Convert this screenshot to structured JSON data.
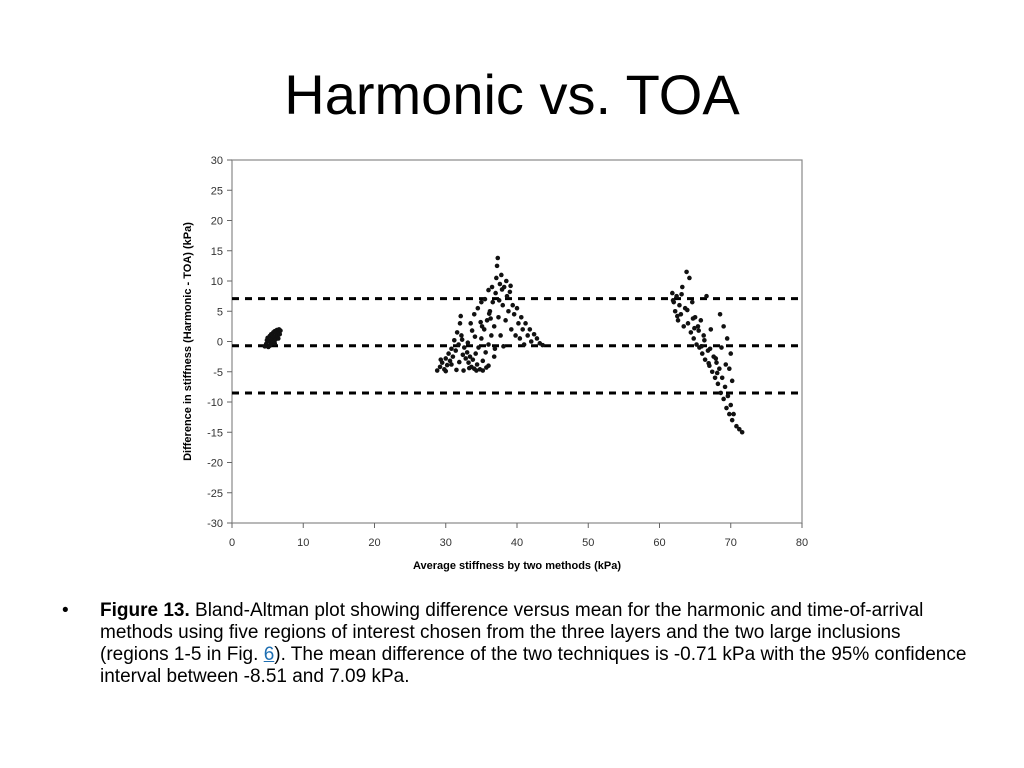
{
  "slide": {
    "title": "Harmonic vs. TOA"
  },
  "caption": {
    "bullet": "•",
    "figure_label": "Figure 13.",
    "text_before_link": " Bland-Altman plot showing difference versus mean for the harmonic and time-of-arrival methods using five regions of interest chosen from the three layers and the two large inclusions (regions 1-5 in Fig. ",
    "link_text": "6",
    "text_after_link": "). The mean difference of the two techniques is -0.71 kPa with the 95% confidence interval between -8.51 and 7.09 kPa.",
    "link_color": "#1f6fb2"
  },
  "chart_data": {
    "type": "scatter",
    "title": "",
    "xlabel": "Average stiffness by two methods (kPa)",
    "ylabel": "Difference in stiffness (Harmonic - TOA) (kPa)",
    "xlim": [
      0,
      80
    ],
    "ylim": [
      -30,
      30
    ],
    "x_ticks": [
      "0",
      "10",
      "20",
      "30",
      "40",
      "50",
      "60",
      "70",
      "80"
    ],
    "y_ticks": [
      "30",
      "25",
      "20",
      "15",
      "10",
      "5",
      "0",
      "-5",
      "-10",
      "-15",
      "-20",
      "-25",
      "-30"
    ],
    "grid": false,
    "reference_lines": [
      {
        "name": "mean",
        "y": -0.71,
        "style": "dashed"
      },
      {
        "name": "upper",
        "y": 7.09,
        "style": "dashed"
      },
      {
        "name": "lower",
        "y": -8.51,
        "style": "dashed"
      }
    ],
    "marker_color": "#111111",
    "series": [
      {
        "points": [
          [
            4.6,
            -0.8
          ],
          [
            4.8,
            -0.4
          ],
          [
            4.9,
            0.2
          ],
          [
            5.0,
            0.6
          ],
          [
            5.1,
            -0.9
          ],
          [
            5.2,
            0.1
          ],
          [
            5.3,
            0.9
          ],
          [
            5.4,
            -0.5
          ],
          [
            5.5,
            1.2
          ],
          [
            5.6,
            0.4
          ],
          [
            5.7,
            -0.2
          ],
          [
            5.8,
            1.5
          ],
          [
            5.9,
            0.8
          ],
          [
            6.0,
            1.7
          ],
          [
            6.1,
            0.3
          ],
          [
            6.2,
            1.4
          ],
          [
            6.3,
            1.9
          ],
          [
            6.4,
            0.9
          ],
          [
            6.5,
            1.6
          ],
          [
            6.6,
            2.0
          ],
          [
            6.7,
            1.2
          ],
          [
            6.8,
            1.8
          ],
          [
            5.3,
            -0.7
          ],
          [
            6.0,
            -0.3
          ],
          [
            6.5,
            0.5
          ],
          [
            28.8,
            -4.8
          ],
          [
            29.2,
            -4.2
          ],
          [
            29.5,
            -3.5
          ],
          [
            29.8,
            -4.6
          ],
          [
            30.0,
            -2.8
          ],
          [
            30.2,
            -3.9
          ],
          [
            30.4,
            -2.0
          ],
          [
            30.6,
            -3.2
          ],
          [
            30.8,
            -1.2
          ],
          [
            31.0,
            -2.5
          ],
          [
            31.2,
            0.2
          ],
          [
            31.4,
            -1.5
          ],
          [
            31.6,
            1.5
          ],
          [
            31.8,
            -0.5
          ],
          [
            32.0,
            3.0
          ],
          [
            32.1,
            4.2
          ],
          [
            32.2,
            1.0
          ],
          [
            32.4,
            -2.2
          ],
          [
            32.6,
            -1.0
          ],
          [
            32.8,
            -2.8
          ],
          [
            33.0,
            -1.8
          ],
          [
            33.2,
            -3.5
          ],
          [
            33.4,
            -2.5
          ],
          [
            33.6,
            -4.2
          ],
          [
            33.8,
            -3.0
          ],
          [
            34.0,
            -4.5
          ],
          [
            34.2,
            -2.0
          ],
          [
            34.4,
            -3.8
          ],
          [
            34.6,
            -1.0
          ],
          [
            34.8,
            -4.6
          ],
          [
            35.0,
            0.5
          ],
          [
            35.2,
            -3.2
          ],
          [
            35.4,
            2.0
          ],
          [
            35.6,
            -1.8
          ],
          [
            35.8,
            3.5
          ],
          [
            36.0,
            -0.5
          ],
          [
            36.2,
            5.0
          ],
          [
            36.4,
            1.0
          ],
          [
            36.6,
            6.5
          ],
          [
            36.8,
            2.5
          ],
          [
            37.0,
            8.0
          ],
          [
            37.1,
            10.5
          ],
          [
            37.2,
            12.5
          ],
          [
            37.3,
            13.8
          ],
          [
            37.4,
            4.0
          ],
          [
            37.6,
            9.5
          ],
          [
            37.8,
            11.0
          ],
          [
            38.0,
            6.0
          ],
          [
            38.2,
            9.0
          ],
          [
            38.4,
            3.5
          ],
          [
            38.6,
            7.5
          ],
          [
            38.8,
            5.0
          ],
          [
            39.0,
            8.2
          ],
          [
            39.2,
            2.0
          ],
          [
            39.4,
            6.0
          ],
          [
            39.6,
            4.5
          ],
          [
            39.8,
            1.0
          ],
          [
            40.0,
            5.5
          ],
          [
            40.2,
            3.0
          ],
          [
            40.4,
            0.5
          ],
          [
            40.6,
            4.0
          ],
          [
            40.8,
            2.0
          ],
          [
            41.0,
            -0.5
          ],
          [
            41.2,
            3.0
          ],
          [
            41.5,
            1.0
          ],
          [
            41.8,
            2.0
          ],
          [
            42.0,
            0.0
          ],
          [
            42.4,
            1.2
          ],
          [
            42.8,
            0.5
          ],
          [
            43.2,
            -0.3
          ],
          [
            43.6,
            -0.6
          ],
          [
            33.5,
            3.0
          ],
          [
            34.0,
            4.5
          ],
          [
            34.5,
            5.5
          ],
          [
            35.0,
            6.5
          ],
          [
            35.5,
            7.0
          ],
          [
            36.0,
            8.5
          ],
          [
            36.5,
            9.0
          ],
          [
            35.2,
            -4.8
          ],
          [
            36.0,
            -4.0
          ],
          [
            36.8,
            -2.5
          ],
          [
            30.0,
            -4.9
          ],
          [
            31.5,
            -4.7
          ],
          [
            32.5,
            -4.8
          ],
          [
            33.3,
            -4.4
          ],
          [
            34.3,
            -4.8
          ],
          [
            35.7,
            -4.3
          ],
          [
            29.3,
            -3.0
          ],
          [
            30.8,
            -3.8
          ],
          [
            31.9,
            -3.4
          ],
          [
            33.1,
            -0.2
          ],
          [
            34.1,
            0.8
          ],
          [
            35.1,
            2.5
          ],
          [
            36.3,
            3.8
          ],
          [
            37.5,
            6.8
          ],
          [
            38.5,
            10.0
          ],
          [
            39.1,
            9.2
          ],
          [
            37.7,
            1.0
          ],
          [
            38.1,
            -0.8
          ],
          [
            36.9,
            -1.2
          ],
          [
            32.3,
            0.3
          ],
          [
            33.7,
            1.8
          ],
          [
            34.9,
            3.2
          ],
          [
            36.1,
            4.6
          ],
          [
            37.9,
            8.6
          ],
          [
            61.8,
            8.0
          ],
          [
            62.0,
            6.5
          ],
          [
            62.2,
            5.0
          ],
          [
            62.4,
            7.5
          ],
          [
            62.6,
            3.5
          ],
          [
            62.8,
            6.0
          ],
          [
            63.0,
            4.5
          ],
          [
            63.2,
            9.0
          ],
          [
            63.4,
            2.5
          ],
          [
            63.6,
            5.5
          ],
          [
            63.8,
            11.5
          ],
          [
            64.0,
            3.0
          ],
          [
            64.2,
            10.5
          ],
          [
            64.4,
            1.5
          ],
          [
            64.6,
            6.5
          ],
          [
            64.8,
            0.5
          ],
          [
            65.0,
            4.0
          ],
          [
            65.2,
            -0.5
          ],
          [
            65.4,
            2.5
          ],
          [
            65.6,
            -1.0
          ],
          [
            65.8,
            3.5
          ],
          [
            66.0,
            -2.0
          ],
          [
            66.2,
            1.0
          ],
          [
            66.4,
            -3.0
          ],
          [
            66.6,
            7.5
          ],
          [
            66.8,
            -1.5
          ],
          [
            67.0,
            -4.0
          ],
          [
            67.2,
            2.0
          ],
          [
            67.4,
            -5.0
          ],
          [
            67.6,
            -2.5
          ],
          [
            67.8,
            -6.0
          ],
          [
            68.0,
            -3.5
          ],
          [
            68.2,
            -7.0
          ],
          [
            68.4,
            -4.5
          ],
          [
            68.6,
            -8.5
          ],
          [
            68.8,
            -6.0
          ],
          [
            69.0,
            -9.5
          ],
          [
            69.2,
            -7.5
          ],
          [
            69.4,
            -11.0
          ],
          [
            69.6,
            -9.0
          ],
          [
            69.8,
            -12.0
          ],
          [
            70.0,
            -10.5
          ],
          [
            70.2,
            -13.0
          ],
          [
            70.4,
            -12.0
          ],
          [
            70.8,
            -14.0
          ],
          [
            71.2,
            -14.5
          ],
          [
            71.6,
            -15.0
          ],
          [
            68.5,
            4.5
          ],
          [
            69.0,
            2.5
          ],
          [
            69.5,
            0.5
          ],
          [
            70.0,
            -2.0
          ],
          [
            69.8,
            -4.5
          ],
          [
            70.2,
            -6.5
          ],
          [
            63.1,
            7.8
          ],
          [
            63.9,
            5.2
          ],
          [
            64.7,
            3.8
          ],
          [
            65.5,
            1.8
          ],
          [
            66.3,
            0.2
          ],
          [
            67.1,
            -1.2
          ],
          [
            67.9,
            -2.8
          ],
          [
            68.7,
            -1.0
          ],
          [
            69.3,
            -3.8
          ],
          [
            68.1,
            -5.2
          ],
          [
            66.9,
            -3.6
          ],
          [
            65.9,
            -0.8
          ],
          [
            64.9,
            2.2
          ],
          [
            62.5,
            4.2
          ],
          [
            61.9,
            6.8
          ]
        ]
      }
    ]
  }
}
